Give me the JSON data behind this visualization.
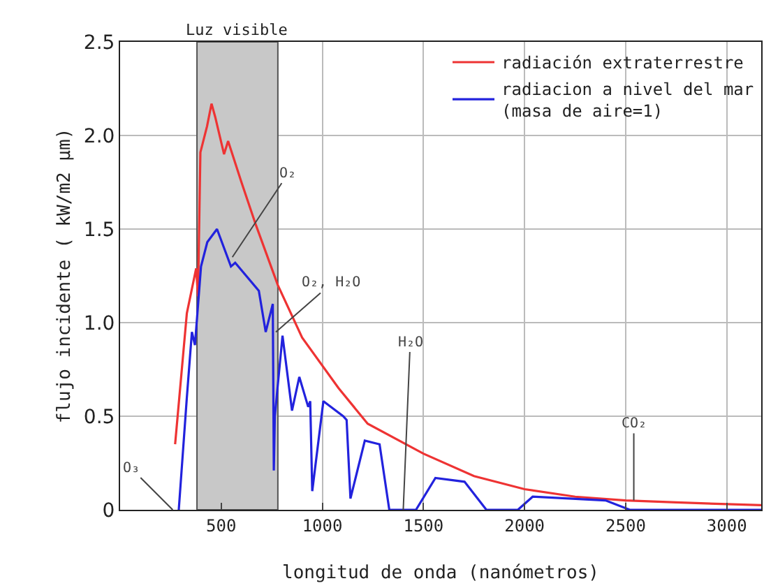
{
  "chart_data": {
    "type": "line",
    "xlabel": "longitud de onda (nanómetros)",
    "ylabel": "flujo incidente ( kW/m2 µm)",
    "series": [
      {
        "name": "radiación extraterrestre",
        "color": "#ee3333",
        "x": [
          272,
          330,
          376,
          385,
          397,
          430,
          452,
          470,
          514,
          534,
          600,
          672,
          780,
          900,
          1080,
          1224,
          1500,
          1750,
          2000,
          2250,
          2500,
          2750,
          3000,
          3170
        ],
        "values": [
          0.35,
          1.05,
          1.29,
          1.14,
          1.91,
          2.05,
          2.17,
          2.1,
          1.9,
          1.97,
          1.75,
          1.52,
          1.2,
          0.92,
          0.65,
          0.46,
          0.3,
          0.18,
          0.11,
          0.07,
          0.05,
          0.04,
          0.03,
          0.025
        ]
      },
      {
        "name": "radiacion a nivel del mar\n(masa de aire=1)",
        "color": "#2222dd",
        "x": [
          290,
          330,
          355,
          370,
          400,
          431,
          479,
          548,
          569,
          686,
          720,
          755,
          760,
          765,
          803,
          850,
          886,
          930,
          940,
          950,
          1005,
          1103,
          1120,
          1139,
          1210,
          1283,
          1331,
          1463,
          1559,
          1703,
          1811,
          1967,
          2040,
          2400,
          2520,
          3170
        ],
        "values": [
          0,
          0.6,
          0.95,
          0.88,
          1.3,
          1.43,
          1.5,
          1.3,
          1.32,
          1.17,
          0.95,
          1.1,
          0.21,
          0.5,
          0.93,
          0.53,
          0.71,
          0.55,
          0.58,
          0.1,
          0.58,
          0.5,
          0.48,
          0.06,
          0.37,
          0.35,
          0,
          0,
          0.17,
          0.15,
          0,
          0,
          0.07,
          0.05,
          0,
          0
        ]
      }
    ],
    "bands": [
      {
        "axis": "x",
        "from": 380,
        "to": 780,
        "label": "Luz visible",
        "color": "#c8c8c8"
      }
    ],
    "annotations": [
      {
        "text": "O₃",
        "x": 260,
        "y": 0
      },
      {
        "text": "O₂",
        "x": 555,
        "y": 1.35
      },
      {
        "text": "O₂, H₂O",
        "x": 770,
        "y": 0.95
      },
      {
        "text": "H₂O",
        "x": 1400,
        "y": 0
      },
      {
        "text": "CO₂",
        "x": 2540,
        "y": 0.05
      }
    ],
    "xlim": [
      0,
      3170
    ],
    "xticks": [
      500,
      1000,
      1500,
      2000,
      2500,
      3000
    ],
    "ylim": [
      0,
      2.5
    ],
    "yticks": [
      0,
      0.5,
      {
        "value": 1,
        "label": "1.0"
      },
      1.5,
      {
        "value": 2,
        "label": "2.0"
      },
      2.5
    ],
    "grid": true,
    "legend": "top right",
    "marker": "none",
    "line_style": "solid"
  }
}
